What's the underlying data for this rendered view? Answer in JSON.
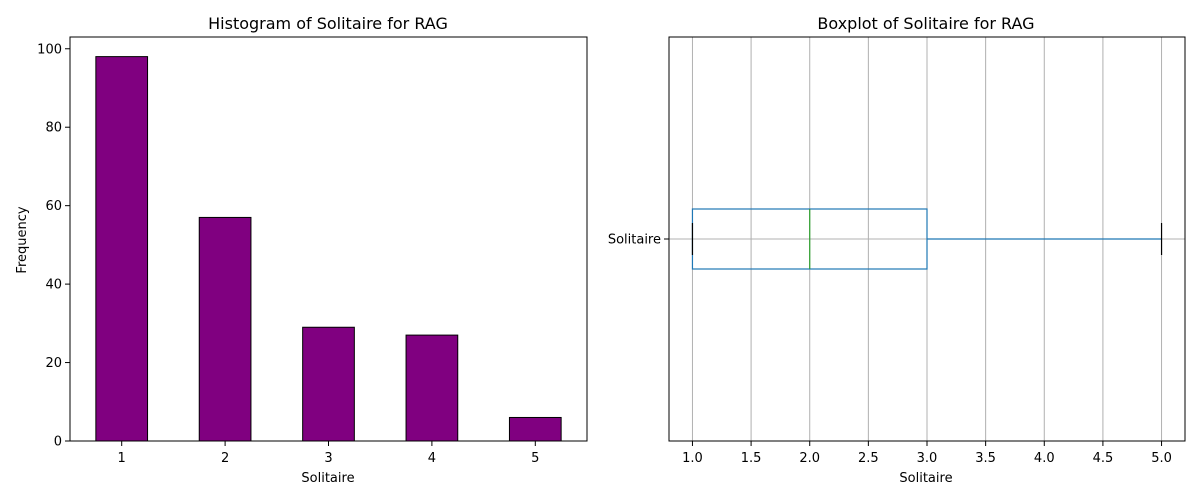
{
  "chart_data": [
    {
      "type": "bar",
      "title": "Histogram of Solitaire for RAG",
      "xlabel": "Solitaire",
      "ylabel": "Frequency",
      "categories": [
        "1",
        "2",
        "3",
        "4",
        "5"
      ],
      "values": [
        98,
        57,
        29,
        27,
        6
      ],
      "ylim": [
        0,
        103
      ],
      "yticks": [
        0,
        20,
        40,
        60,
        80,
        100
      ],
      "bar_color": "#800080",
      "edge_color": "#000000",
      "grid": false
    },
    {
      "type": "boxplot",
      "orientation": "horizontal",
      "title": "Boxplot of Solitaire for RAG",
      "xlabel": "Solitaire",
      "category": "Solitaire",
      "stats": {
        "whisker_low": 1.0,
        "q1": 1.0,
        "median": 2.0,
        "q3": 3.0,
        "whisker_high": 5.0
      },
      "xlim": [
        0.8,
        5.2
      ],
      "xticks": [
        "1.0",
        "1.5",
        "2.0",
        "2.5",
        "3.0",
        "3.5",
        "4.0",
        "4.5",
        "5.0"
      ],
      "box_color": "#1f77b4",
      "median_color": "#2ca02c",
      "whisker_cap_color": "#000000",
      "grid": true
    }
  ]
}
